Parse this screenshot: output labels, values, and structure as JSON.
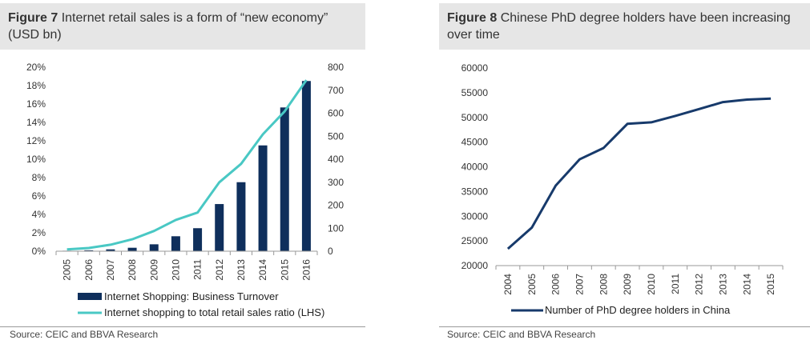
{
  "figures": [
    {
      "label": "Figure 7",
      "title": "Internet retail sales is a form of “new economy” (USD bn)",
      "source": "Source: CEIC and BBVA Research"
    },
    {
      "label": "Figure 8",
      "title": "Chinese PhD degree holders have been increasing over time",
      "source": "Source: CEIC and BBVA Research"
    }
  ],
  "chart_data": [
    {
      "type": "bar",
      "title": "",
      "categories": [
        "2005",
        "2006",
        "2007",
        "2008",
        "2009",
        "2010",
        "2011",
        "2012",
        "2013",
        "2014",
        "2015",
        "2016"
      ],
      "series": [
        {
          "name": "Internet Shopping: Business Turnover",
          "type": "bar",
          "axis": "right",
          "color": "#0f2f5c",
          "values": [
            2,
            4,
            8,
            15,
            30,
            65,
            100,
            205,
            300,
            460,
            625,
            740
          ]
        },
        {
          "name": "Internet shopping to total retail sales ratio (LHS)",
          "type": "line",
          "axis": "left",
          "color": "#49c8c4",
          "values": [
            0.2,
            0.35,
            0.7,
            1.3,
            2.2,
            3.4,
            4.2,
            7.5,
            9.5,
            12.7,
            15.2,
            18.6
          ]
        }
      ],
      "y_left": {
        "min": 0,
        "max": 20,
        "step": 2,
        "tick_labels": [
          "0%",
          "2%",
          "4%",
          "6%",
          "8%",
          "10%",
          "12%",
          "14%",
          "16%",
          "18%",
          "20%"
        ]
      },
      "y_right": {
        "min": 0,
        "max": 800,
        "step": 100,
        "tick_labels": [
          "0",
          "100",
          "200",
          "300",
          "400",
          "500",
          "600",
          "700",
          "800"
        ]
      },
      "grid": false,
      "legend_position": "bottom"
    },
    {
      "type": "line",
      "title": "",
      "categories": [
        "2004",
        "2005",
        "2006",
        "2007",
        "2008",
        "2009",
        "2010",
        "2011",
        "2012",
        "2013",
        "2014",
        "2015"
      ],
      "series": [
        {
          "name": "Number of PhD degree holders in China",
          "color": "#173a6b",
          "values": [
            23400,
            27700,
            36200,
            41500,
            43800,
            48700,
            49000,
            50300,
            51700,
            53100,
            53600,
            53800
          ]
        }
      ],
      "y": {
        "min": 20000,
        "max": 60000,
        "step": 5000,
        "tick_labels": [
          "20000",
          "25000",
          "30000",
          "35000",
          "40000",
          "45000",
          "50000",
          "55000",
          "60000"
        ]
      },
      "grid": false,
      "legend_position": "bottom"
    }
  ]
}
